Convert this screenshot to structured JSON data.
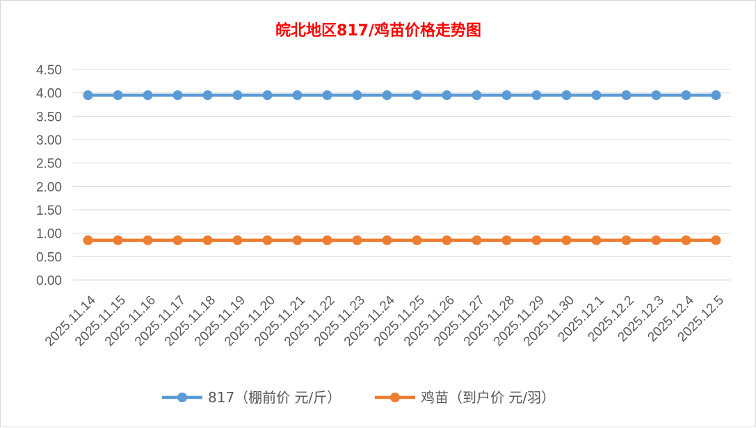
{
  "chart_data": {
    "type": "line",
    "title": "皖北地区817/鸡苗价格走势图",
    "title_color": "#ff0000",
    "categories": [
      "2025.11.14",
      "2025.11.15",
      "2025.11.16",
      "2025.11.17",
      "2025.11.18",
      "2025.11.19",
      "2025.11.20",
      "2025.11.21",
      "2025.11.22",
      "2025.11.23",
      "2025.11.24",
      "2025.11.25",
      "2025.11.26",
      "2025.11.27",
      "2025.11.28",
      "2025.11.29",
      "2025.11.30",
      "2025.12.1",
      "2025.12.2",
      "2025.12.3",
      "2025.12.4",
      "2025.12.5"
    ],
    "series": [
      {
        "name": "817（棚前价 元/斤）",
        "color": "#5b9bd5",
        "values": [
          3.95,
          3.95,
          3.95,
          3.95,
          3.95,
          3.95,
          3.95,
          3.95,
          3.95,
          3.95,
          3.95,
          3.95,
          3.95,
          3.95,
          3.95,
          3.95,
          3.95,
          3.95,
          3.95,
          3.95,
          3.95,
          3.95
        ]
      },
      {
        "name": "鸡苗（到户价 元/羽）",
        "color": "#ed7d31",
        "values": [
          0.85,
          0.85,
          0.85,
          0.85,
          0.85,
          0.85,
          0.85,
          0.85,
          0.85,
          0.85,
          0.85,
          0.85,
          0.85,
          0.85,
          0.85,
          0.85,
          0.85,
          0.85,
          0.85,
          0.85,
          0.85,
          0.85
        ]
      }
    ],
    "ylim": [
      0,
      4.5
    ],
    "yticks": [
      "0.00",
      "0.50",
      "1.00",
      "1.50",
      "2.00",
      "2.50",
      "3.00",
      "3.50",
      "4.00",
      "4.50"
    ],
    "grid": true,
    "legend_position": "bottom"
  }
}
